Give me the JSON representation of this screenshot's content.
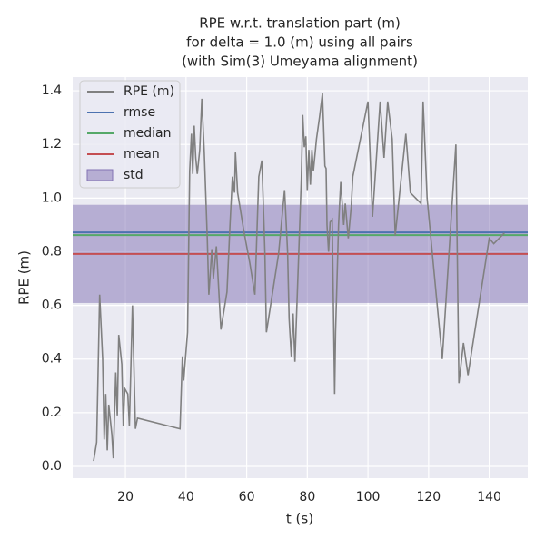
{
  "chart_data": {
    "type": "line",
    "title": [
      "RPE w.r.t. translation part (m)",
      "for delta = 1.0 (m) using all pairs",
      "(with Sim(3) Umeyama alignment)"
    ],
    "xlabel": "t (s)",
    "ylabel": "RPE (m)",
    "xlim": [
      2.6,
      152.7
    ],
    "ylim": [
      -0.044,
      1.451
    ],
    "xticks": [
      20,
      40,
      60,
      80,
      100,
      120,
      140
    ],
    "yticks": [
      {
        "value": 0,
        "label": "0.0"
      },
      {
        "value": 0.2,
        "label": "0.2"
      },
      {
        "value": 0.4,
        "label": "0.4"
      },
      {
        "value": 0.6,
        "label": "0.6"
      },
      {
        "value": 0.8,
        "label": "0.8"
      },
      {
        "value": 1,
        "label": "1.0"
      },
      {
        "value": 1.2,
        "label": "1.2"
      },
      {
        "value": 1.4,
        "label": "1.4"
      }
    ],
    "grid": true,
    "legend": "upper left",
    "series": [
      {
        "name": "RPE (m)",
        "color": "#808080",
        "x": [
          9.5,
          10.5,
          11.5,
          12.5,
          13,
          13.5,
          14,
          14.5,
          15.5,
          16,
          16.8,
          17.3,
          17.8,
          18.8,
          19.3,
          19.8,
          20.8,
          21.3,
          22.3,
          23.3,
          24,
          38,
          38.8,
          39.2,
          40.5,
          41.2,
          41.8,
          42.2,
          42.7,
          43.2,
          43.7,
          44.5,
          45.2,
          46,
          47,
          47.5,
          48,
          48.5,
          49,
          50,
          51.5,
          53.5,
          54.5,
          55.3,
          56,
          56.3,
          57,
          59,
          61,
          62.7,
          64,
          65,
          66,
          66.5,
          70.5,
          72.5,
          73.5,
          74,
          74.7,
          75.3,
          75.9,
          78,
          78.5,
          79,
          79.5,
          80,
          80.5,
          81,
          81.5,
          82,
          83,
          84,
          85,
          85.8,
          86.2,
          86.5,
          87,
          87.5,
          88.2,
          89,
          89.3,
          90.3,
          91,
          92,
          92.5,
          93.5,
          94.5,
          95,
          100,
          101.5,
          104,
          105.3,
          106.5,
          108,
          109,
          112.5,
          114,
          117.5,
          118.2,
          119.5,
          124.5,
          129,
          130,
          131.5,
          133,
          140,
          141.5,
          145
        ],
        "values": [
          0.02,
          0.09,
          0.64,
          0.4,
          0.1,
          0.27,
          0.06,
          0.23,
          0.12,
          0.03,
          0.35,
          0.19,
          0.49,
          0.38,
          0.15,
          0.29,
          0.27,
          0.15,
          0.6,
          0.14,
          0.18,
          0.14,
          0.41,
          0.32,
          0.5,
          1.1,
          1.24,
          1.09,
          1.27,
          1.15,
          1.09,
          1.18,
          1.37,
          1.17,
          0.85,
          0.64,
          0.72,
          0.81,
          0.7,
          0.82,
          0.51,
          0.65,
          0.9,
          1.08,
          1.02,
          1.17,
          1.02,
          0.88,
          0.76,
          0.64,
          1.08,
          1.14,
          0.8,
          0.5,
          0.79,
          1.03,
          0.8,
          0.55,
          0.41,
          0.57,
          0.39,
          1.07,
          1.31,
          1.19,
          1.23,
          1.03,
          1.18,
          1.05,
          1.18,
          1.1,
          1.22,
          1.3,
          1.39,
          1.12,
          1.11,
          0.9,
          0.8,
          0.91,
          0.92,
          0.27,
          0.5,
          0.9,
          1.06,
          0.9,
          0.98,
          0.85,
          0.97,
          1.08,
          1.36,
          0.93,
          1.36,
          1.15,
          1.36,
          1.22,
          0.86,
          1.24,
          1.02,
          0.98,
          1.36,
          1.0,
          0.4,
          1.2,
          0.31,
          0.46,
          0.34,
          0.85,
          0.83,
          0.87
        ]
      }
    ],
    "stats": [
      {
        "name": "rmse",
        "value": 0.872,
        "color": "#4c72b0"
      },
      {
        "name": "median",
        "value": 0.862,
        "color": "#55a868"
      },
      {
        "name": "mean",
        "value": 0.792,
        "color": "#c44e52"
      },
      {
        "name": "std",
        "value": 0.183,
        "color": "#8172b3"
      }
    ]
  }
}
